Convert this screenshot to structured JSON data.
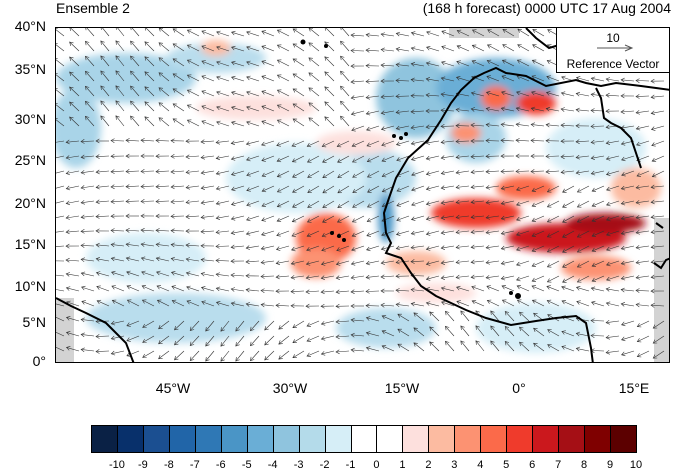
{
  "header": {
    "left_title": "Ensemble 2",
    "right_title": "(168 h forecast) 0000 UTC 17 Aug 2004"
  },
  "map": {
    "lat_labels": [
      "40°N",
      "35°N",
      "30°N",
      "25°N",
      "20°N",
      "15°N",
      "10°N",
      "5°N",
      "0°"
    ],
    "lon_labels": [
      "45°W",
      "30°W",
      "15°W",
      "0°",
      "15°E"
    ],
    "land_color": "#d3d3d3"
  },
  "reference_vector": {
    "value": "10",
    "label": "Reference Vector"
  },
  "colorbar": {
    "labels": [
      "-10",
      "-9",
      "-8",
      "-7",
      "-6",
      "-5",
      "-4",
      "-3",
      "-2",
      "-1",
      "0",
      "1",
      "2",
      "3",
      "4",
      "5",
      "6",
      "7",
      "8",
      "9",
      "10"
    ],
    "colors": [
      "#0a2145",
      "#08306b",
      "#1b4f91",
      "#2165a8",
      "#2f78b5",
      "#4a95c6",
      "#6aaed6",
      "#8fc4de",
      "#b4dbea",
      "#d6eef7",
      "#ffffff",
      "#ffffff",
      "#fde0dd",
      "#fcbba1",
      "#fc9272",
      "#fb6a4a",
      "#ef3b2c",
      "#cb181d",
      "#a50f15",
      "#7f0000",
      "#5c0000"
    ]
  }
}
